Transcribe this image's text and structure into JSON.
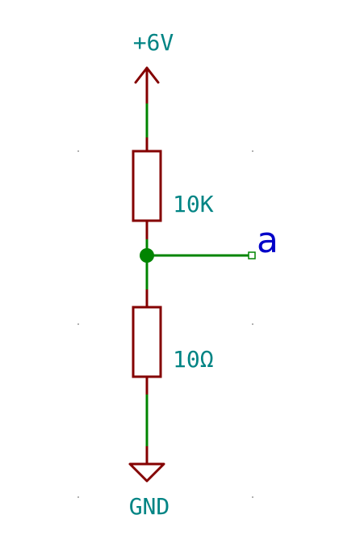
{
  "schematic": {
    "power_label": "+6V",
    "resistor_top_value": "10K",
    "resistor_bottom_value": "10Ω",
    "net_label": "a",
    "ground_label": "GND"
  },
  "colors": {
    "wire": "#008400",
    "component": "#840000",
    "label": "#008484",
    "net_label": "#0000c8",
    "grid_dot": "#999999"
  }
}
